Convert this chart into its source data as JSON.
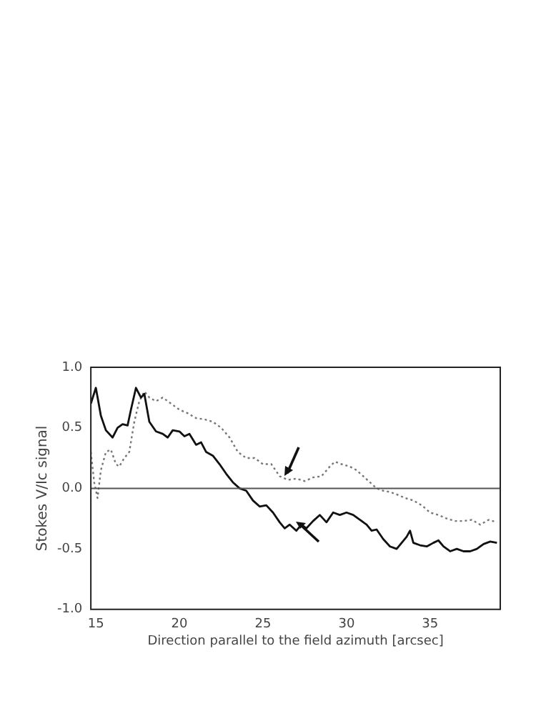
{
  "chart_data": {
    "type": "line",
    "xlabel": "Direction parallel to the field azimuth [arcsec]",
    "ylabel": "Stokes V/Ic signal",
    "xlim": [
      14.7,
      39.2
    ],
    "xticks": [
      15,
      20,
      25,
      30,
      35
    ],
    "ylim": [
      -1.0,
      1.0
    ],
    "yticks": [
      {
        "value": -1.0,
        "label": "-1.0"
      },
      {
        "value": -0.5,
        "label": "-0.5"
      },
      {
        "value": 0,
        "label": "0.0"
      },
      {
        "value": 0.5,
        "label": "0.5"
      },
      {
        "value": 1.0,
        "label": "1.0"
      }
    ],
    "grid": false,
    "legend": false,
    "marker": "none",
    "ref_lines": [
      {
        "axis": "y",
        "value": 0,
        "color": "#555555",
        "line_style": "solid"
      }
    ],
    "series": [
      {
        "color": "#111111",
        "line_style": "solid",
        "x": [
          14.7,
          15.0,
          15.3,
          15.6,
          16.0,
          16.3,
          16.6,
          16.9,
          17.1,
          17.4,
          17.7,
          17.9,
          18.2,
          18.6,
          19.0,
          19.3,
          19.6,
          20.0,
          20.3,
          20.6,
          21.0,
          21.3,
          21.6,
          22.0,
          22.4,
          22.8,
          23.2,
          23.6,
          24.0,
          24.4,
          24.8,
          25.2,
          25.6,
          26.0,
          26.3,
          26.6,
          27.0,
          27.3,
          27.6,
          28.0,
          28.4,
          28.8,
          29.2,
          29.6,
          30.0,
          30.4,
          30.8,
          31.2,
          31.5,
          31.8,
          32.2,
          32.6,
          33.0,
          33.3,
          33.6,
          33.8,
          34.0,
          34.4,
          34.8,
          35.2,
          35.5,
          35.8,
          36.2,
          36.6,
          37.0,
          37.4,
          37.8,
          38.2,
          38.6,
          39.0
        ],
        "values": [
          0.7,
          0.83,
          0.6,
          0.48,
          0.42,
          0.5,
          0.53,
          0.52,
          0.65,
          0.83,
          0.75,
          0.78,
          0.55,
          0.47,
          0.45,
          0.42,
          0.48,
          0.47,
          0.43,
          0.45,
          0.36,
          0.38,
          0.3,
          0.27,
          0.2,
          0.12,
          0.05,
          0.0,
          -0.02,
          -0.1,
          -0.15,
          -0.14,
          -0.2,
          -0.28,
          -0.33,
          -0.3,
          -0.35,
          -0.3,
          -0.33,
          -0.27,
          -0.22,
          -0.28,
          -0.2,
          -0.22,
          -0.2,
          -0.22,
          -0.26,
          -0.3,
          -0.35,
          -0.34,
          -0.42,
          -0.48,
          -0.5,
          -0.45,
          -0.4,
          -0.35,
          -0.45,
          -0.47,
          -0.48,
          -0.45,
          -0.43,
          -0.48,
          -0.52,
          -0.5,
          -0.52,
          -0.52,
          -0.5,
          -0.46,
          -0.44,
          -0.45
        ]
      },
      {
        "color": "#777777",
        "line_style": "dotted",
        "x": [
          14.7,
          14.9,
          15.1,
          15.3,
          15.6,
          15.9,
          16.2,
          16.4,
          16.7,
          17.0,
          17.3,
          17.6,
          17.9,
          18.2,
          18.6,
          19.0,
          19.5,
          20.0,
          20.5,
          21.0,
          21.5,
          22.0,
          22.5,
          23.0,
          23.5,
          24.0,
          24.5,
          25.0,
          25.5,
          26.0,
          26.5,
          27.0,
          27.5,
          28.0,
          28.5,
          29.0,
          29.3,
          29.7,
          30.2,
          30.6,
          31.0,
          31.4,
          31.8,
          32.2,
          32.6,
          33.0,
          33.5,
          34.0,
          34.5,
          35.0,
          35.5,
          36.0,
          36.5,
          37.0,
          37.5,
          38.0,
          38.5,
          39.0
        ],
        "values": [
          0.3,
          0.05,
          -0.08,
          0.15,
          0.3,
          0.32,
          0.2,
          0.18,
          0.25,
          0.3,
          0.55,
          0.72,
          0.8,
          0.75,
          0.72,
          0.75,
          0.7,
          0.65,
          0.62,
          0.58,
          0.57,
          0.55,
          0.5,
          0.42,
          0.3,
          0.25,
          0.25,
          0.2,
          0.2,
          0.1,
          0.07,
          0.08,
          0.06,
          0.09,
          0.1,
          0.18,
          0.22,
          0.2,
          0.18,
          0.15,
          0.1,
          0.05,
          0.0,
          -0.02,
          -0.03,
          -0.05,
          -0.08,
          -0.1,
          -0.14,
          -0.2,
          -0.22,
          -0.25,
          -0.27,
          -0.27,
          -0.26,
          -0.3,
          -0.26,
          -0.28
        ]
      }
    ]
  }
}
